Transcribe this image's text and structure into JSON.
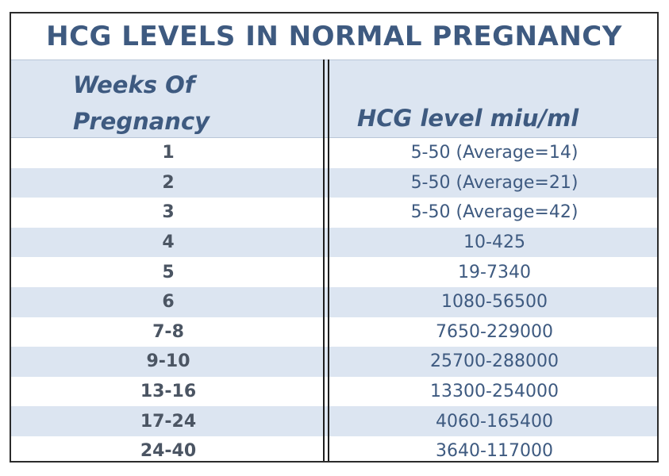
{
  "title": "HCG LEVELS IN NORMAL PREGNANCY",
  "headers": {
    "weeks": "Weeks  Of Pregnancy",
    "hcg": "HCG level miu/ml"
  },
  "rows": [
    {
      "weeks": "1",
      "hcg": "5-50 (Average=14)"
    },
    {
      "weeks": "2",
      "hcg": "5-50 (Average=21)"
    },
    {
      "weeks": "3",
      "hcg": "5-50 (Average=42)"
    },
    {
      "weeks": "4",
      "hcg": "10-425"
    },
    {
      "weeks": "5",
      "hcg": "19-7340"
    },
    {
      "weeks": "6",
      "hcg": "1080-56500"
    },
    {
      "weeks": "7-8",
      "hcg": "7650-229000"
    },
    {
      "weeks": "9-10",
      "hcg": "25700-288000"
    },
    {
      "weeks": "13-16",
      "hcg": "13300-254000"
    },
    {
      "weeks": "17-24",
      "hcg": "4060-165400"
    },
    {
      "weeks": "24-40",
      "hcg": "3640-117000"
    }
  ],
  "colors": {
    "title": "#3e5a80",
    "row_shade": "#dce5f1",
    "week_text": "#4b5563",
    "hcg_text": "#3e5a80"
  }
}
